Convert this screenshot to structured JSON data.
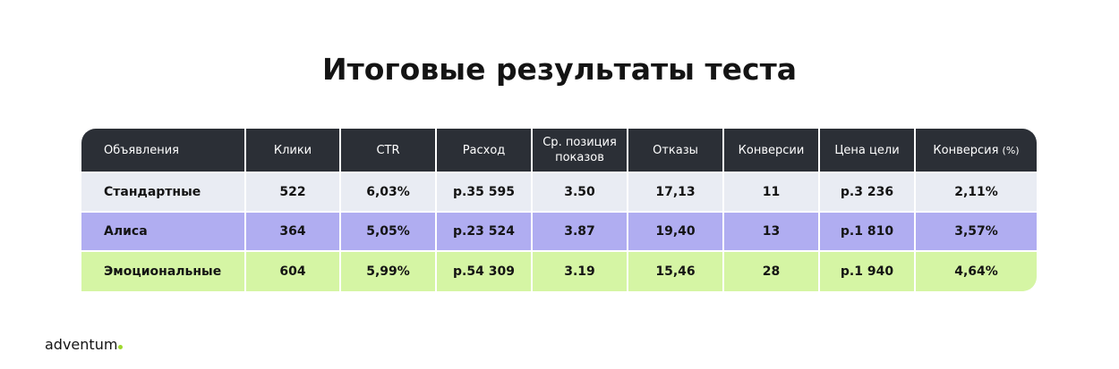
{
  "title": "Итоговые результаты теста",
  "colors": {
    "header_bg": "#2b2f36",
    "row_standard": "#e9ecf3",
    "row_alisa": "#b0adf1",
    "row_emotional": "#d5f5a4",
    "logo_dot": "#9fd82e"
  },
  "chart_data": {
    "type": "table",
    "columns": [
      {
        "label": "Объявления"
      },
      {
        "label": "Клики"
      },
      {
        "label": "CTR"
      },
      {
        "label": "Расход"
      },
      {
        "label": "Ср. позиция показов"
      },
      {
        "label": "Отказы"
      },
      {
        "label": "Конверсии"
      },
      {
        "label": "Цена цели"
      },
      {
        "label": "Конверсия",
        "unit": "(%)"
      }
    ],
    "rows": [
      {
        "cells": [
          "Стандартные",
          "522",
          "6,03%",
          "р.35 595",
          "3.50",
          "17,13",
          "11",
          "р.3 236",
          "2,11%"
        ]
      },
      {
        "cells": [
          "Алиса",
          "364",
          "5,05%",
          "р.23 524",
          "3.87",
          "19,40",
          "13",
          "р.1 810",
          "3,57%"
        ]
      },
      {
        "cells": [
          "Эмоциональные",
          "604",
          "5,99%",
          "р.54 309",
          "3.19",
          "15,46",
          "28",
          "р.1 940",
          "4,64%"
        ]
      }
    ]
  },
  "logo": {
    "text": "adventum"
  }
}
